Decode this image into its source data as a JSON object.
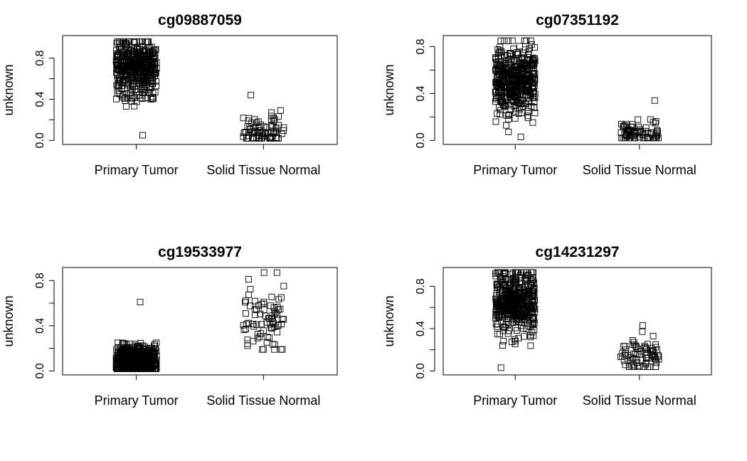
{
  "chart_data": [
    {
      "type": "scatter",
      "title": "cg09887059",
      "ylabel": "unknown",
      "categories": [
        "Primary Tumor",
        "Solid Tissue Normal"
      ],
      "yticks": [
        "0.0",
        "0.4",
        "0.8"
      ],
      "ylim": [
        0.0,
        0.98
      ],
      "groups": [
        {
          "category": "Primary Tumor",
          "n": 450,
          "center": 0.7,
          "spread": 0.14,
          "min": 0.05,
          "max": 0.96,
          "jitter": 0.16
        },
        {
          "category": "Solid Tissue Normal",
          "n": 80,
          "center": 0.08,
          "spread": 0.1,
          "min": 0.02,
          "max": 0.44,
          "jitter": 0.16
        }
      ]
    },
    {
      "type": "scatter",
      "title": "cg07351192",
      "ylabel": "unknown",
      "categories": [
        "Primary Tumor",
        "Solid Tissue Normal"
      ],
      "yticks": [
        "0.0",
        "0.4",
        "0.8"
      ],
      "ylim": [
        0.0,
        0.86
      ],
      "groups": [
        {
          "category": "Primary Tumor",
          "n": 450,
          "center": 0.5,
          "spread": 0.15,
          "min": 0.03,
          "max": 0.85,
          "jitter": 0.16
        },
        {
          "category": "Solid Tissue Normal",
          "n": 80,
          "center": 0.06,
          "spread": 0.05,
          "min": 0.02,
          "max": 0.34,
          "jitter": 0.16
        }
      ]
    },
    {
      "type": "scatter",
      "title": "cg19533977",
      "ylabel": "unknown",
      "categories": [
        "Primary Tumor",
        "Solid Tissue Normal"
      ],
      "yticks": [
        "0.0",
        "0.4",
        "0.8"
      ],
      "ylim": [
        0.0,
        0.88
      ],
      "groups": [
        {
          "category": "Primary Tumor",
          "n": 450,
          "center": 0.09,
          "spread": 0.07,
          "min": 0.02,
          "max": 0.61,
          "jitter": 0.16
        },
        {
          "category": "Solid Tissue Normal",
          "n": 80,
          "center": 0.45,
          "spread": 0.15,
          "min": 0.19,
          "max": 0.87,
          "jitter": 0.16
        }
      ]
    },
    {
      "type": "scatter",
      "title": "cg14231297",
      "ylabel": "unknown",
      "categories": [
        "Primary Tumor",
        "Solid Tissue Normal"
      ],
      "yticks": [
        "0.0",
        "0.4",
        "0.8"
      ],
      "ylim": [
        0.0,
        0.94
      ],
      "groups": [
        {
          "category": "Primary Tumor",
          "n": 450,
          "center": 0.64,
          "spread": 0.15,
          "min": 0.03,
          "max": 0.93,
          "jitter": 0.16
        },
        {
          "category": "Solid Tissue Normal",
          "n": 80,
          "center": 0.12,
          "spread": 0.08,
          "min": 0.04,
          "max": 0.43,
          "jitter": 0.16
        }
      ]
    }
  ]
}
